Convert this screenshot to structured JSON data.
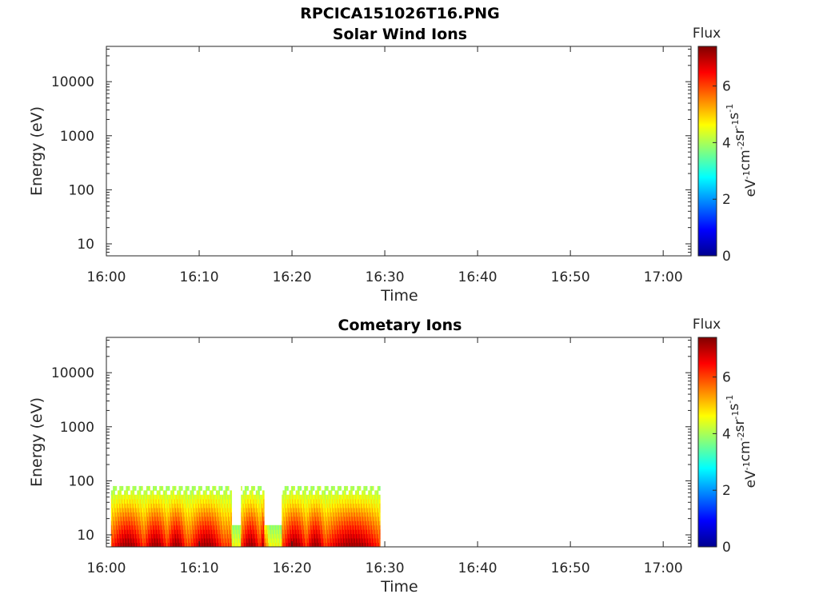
{
  "figure": {
    "title": "RPCICA151026T16.PNG"
  },
  "colors": {
    "colormap": "jet",
    "axis": "#262626",
    "background": "#ffffff"
  },
  "chart_data": [
    {
      "type": "heatmap",
      "title": "Solar Wind Ions",
      "xlabel": "Time",
      "ylabel": "Energy (eV)",
      "x_ticks": [
        "16:00",
        "16:10",
        "16:20",
        "16:30",
        "16:40",
        "16:50",
        "17:00"
      ],
      "x_range": [
        "16:00",
        "17:03"
      ],
      "y_scale": "log",
      "y_ticks": [
        10,
        100,
        1000,
        10000
      ],
      "y_tick_labels": [
        "10",
        "100",
        "1000",
        "10000"
      ],
      "y_range": [
        6,
        45000
      ],
      "colorbar": {
        "label": "Flux",
        "units": "eV-1cm-2sr-1s-1",
        "range": [
          0,
          7.4
        ],
        "ticks": [
          0,
          2,
          4,
          6
        ],
        "tick_labels": [
          "0",
          "2",
          "4",
          "6"
        ]
      },
      "data": []
    },
    {
      "type": "heatmap",
      "title": "Cometary Ions",
      "xlabel": "Time",
      "ylabel": "Energy (eV)",
      "x_ticks": [
        "16:00",
        "16:10",
        "16:20",
        "16:30",
        "16:40",
        "16:50",
        "17:00"
      ],
      "x_range": [
        "16:00",
        "17:03"
      ],
      "y_scale": "log",
      "y_ticks": [
        10,
        100,
        1000,
        10000
      ],
      "y_tick_labels": [
        "10",
        "100",
        "1000",
        "10000"
      ],
      "y_range": [
        6,
        45000
      ],
      "colorbar": {
        "label": "Flux",
        "units": "eV-1cm-2sr-1s-1",
        "range": [
          0,
          7.4
        ],
        "ticks": [
          0,
          2,
          4,
          6
        ],
        "tick_labels": [
          "0",
          "2",
          "4",
          "6"
        ]
      },
      "data": {
        "time_range": [
          "16:00:30",
          "16:29:30"
        ],
        "energy_range_eV": [
          6,
          80
        ],
        "gaps": [
          [
            "16:13:30",
            "16:14:30"
          ],
          [
            "16:17:00",
            "16:18:50"
          ]
        ],
        "high_flux_intervals": [
          [
            "16:00:30",
            "16:04:00"
          ],
          [
            "16:04:00",
            "16:06:30"
          ],
          [
            "16:06:30",
            "16:08:30"
          ],
          [
            "16:09:00",
            "16:12:30"
          ],
          [
            "16:14:30",
            "16:16:30"
          ],
          [
            "16:16:30",
            "16:17:30"
          ],
          [
            "16:19:00",
            "16:21:30"
          ],
          [
            "16:21:30",
            "16:23:30"
          ],
          [
            "16:23:30",
            "16:29:30"
          ]
        ],
        "typical_flux_low_energy": 6.0,
        "typical_flux_high_energy": 3.5
      }
    }
  ]
}
